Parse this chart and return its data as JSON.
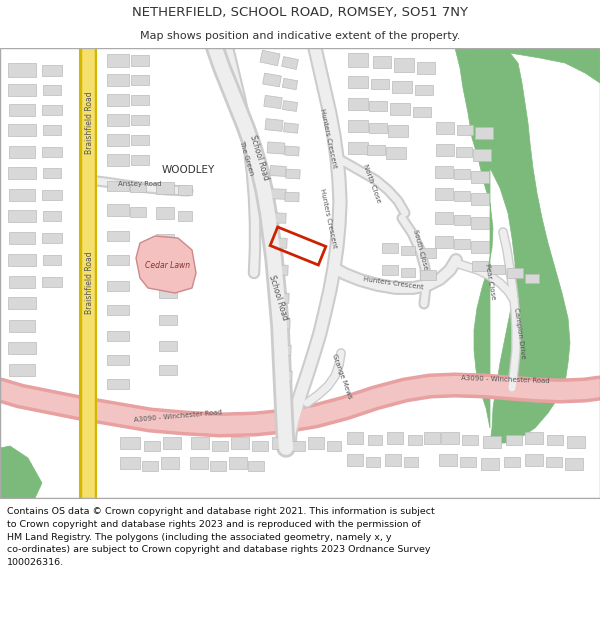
{
  "title": "NETHERFIELD, SCHOOL ROAD, ROMSEY, SO51 7NY",
  "subtitle": "Map shows position and indicative extent of the property.",
  "footer": "Contains OS data © Crown copyright and database right 2021. This information is subject\nto Crown copyright and database rights 2023 and is reproduced with the permission of\nHM Land Registry. The polygons (including the associated geometry, namely x, y\nco-ordinates) are subject to Crown copyright and database rights 2023 Ordnance Survey\n100026316.",
  "title_fontsize": 9.5,
  "subtitle_fontsize": 8,
  "footer_fontsize": 6.8,
  "bg_white": "#ffffff",
  "building_fill": "#d8d8d8",
  "building_edge": "#bbbbbb",
  "road_fill": "#eeeeee",
  "road_edge": "#cccccc",
  "yellow_fill": "#f5e06e",
  "yellow_edge": "#d4b800",
  "pink_fill": "#f2c4c4",
  "pink_edge": "#e8a0a0",
  "green_fill": "#7cba7c",
  "red_color": "#cc2200",
  "cedar_fill": "#f5c0c0",
  "cedar_edge": "#cc8888",
  "text_dark": "#333333",
  "text_road": "#555555",
  "map_border": "#aaaaaa"
}
